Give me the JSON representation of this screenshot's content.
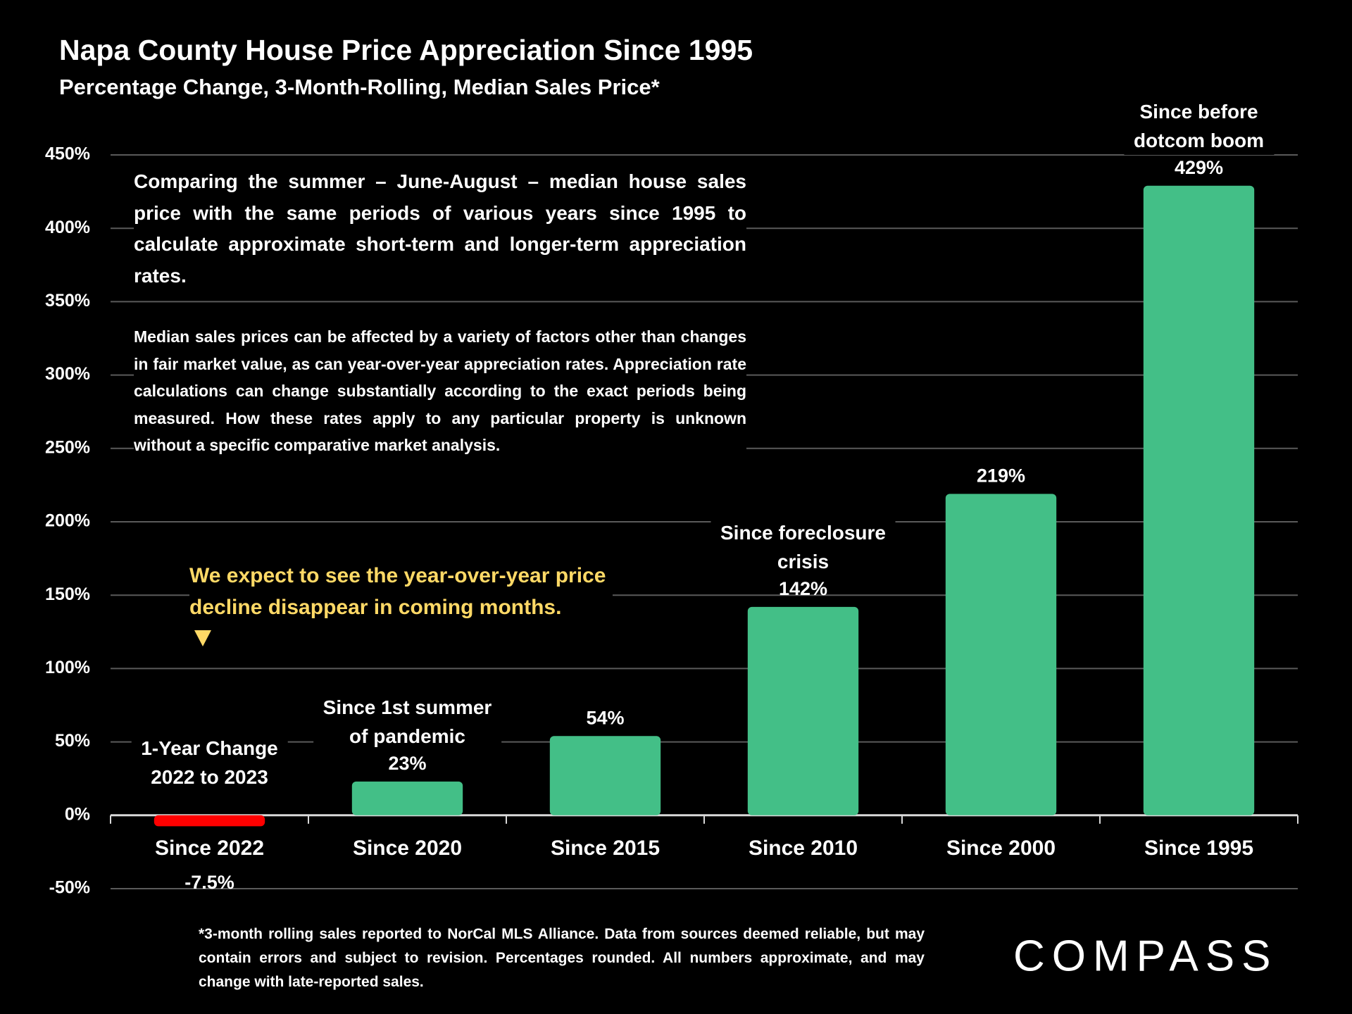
{
  "chart_data": {
    "type": "bar",
    "title": "Napa County House Price Appreciation Since 1995",
    "subtitle": "Percentage Change, 3-Month-Rolling, Median Sales Price*",
    "categories": [
      "Since 2022",
      "Since 2020",
      "Since 2015",
      "Since 2010",
      "Since 2000",
      "Since 1995"
    ],
    "values": [
      -7.5,
      23,
      54,
      142,
      219,
      429
    ],
    "value_labels": [
      "-7.5%",
      "23%",
      "54%",
      "142%",
      "219%",
      "429%"
    ],
    "colors": [
      "#ff0000",
      "#43bf87",
      "#43bf87",
      "#43bf87",
      "#43bf87",
      "#43bf87"
    ],
    "ylim": [
      -50,
      450
    ],
    "yticks": [
      {
        "value": -50,
        "label": "-50%"
      },
      {
        "value": 0,
        "label": "0%"
      },
      {
        "value": 50,
        "label": "50%"
      },
      {
        "value": 100,
        "label": "100%"
      },
      {
        "value": 150,
        "label": "150%"
      },
      {
        "value": 200,
        "label": "200%"
      },
      {
        "value": 250,
        "label": "250%"
      },
      {
        "value": 300,
        "label": "300%"
      },
      {
        "value": 350,
        "label": "350%"
      },
      {
        "value": 400,
        "label": "400%"
      },
      {
        "value": 450,
        "label": "450%"
      }
    ],
    "grid": true,
    "annotations": [
      {
        "category": "Since 2022",
        "text": [
          "1-Year Change",
          "2022 to 2023"
        ]
      },
      {
        "category": "Since 2020",
        "text": [
          "Since 1st summer",
          "of pandemic"
        ]
      },
      {
        "category": "Since 2010",
        "text": [
          "Since foreclosure",
          "crisis"
        ]
      },
      {
        "category": "Since 1995",
        "text": [
          "Since before",
          "dotcom boom"
        ]
      }
    ],
    "callout": [
      "We expect to see the year-over-year price",
      "decline disappear in coming months."
    ],
    "paragraphs": [
      "Comparing the summer – June-August – median house sales price with the same periods of various years since 1995 to calculate approximate short-term and longer-term appreciation rates.",
      "Median sales prices can be affected by a variety of factors other than changes in fair market value, as can year-over-year appreciation rates. Appreciation rate calculations can change substantially according to the exact periods being measured. How these rates apply to any particular property is unknown without a specific comparative market analysis."
    ],
    "footnote": "*3-month rolling sales reported to NorCal MLS Alliance. Data from sources deemed reliable, but may contain errors and subject to revision. Percentages rounded. All numbers approximate, and may change with late-reported sales.",
    "logo": "COMPASS"
  }
}
